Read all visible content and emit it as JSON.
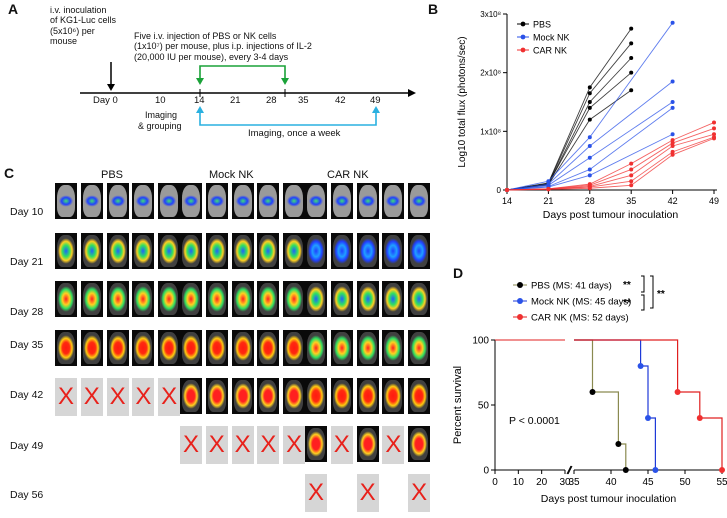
{
  "panels": {
    "a": "A",
    "b": "B",
    "c": "C",
    "d": "D"
  },
  "timeline": {
    "inoculation_text": [
      "i.v. inoculation",
      "of KG1-Luc cells",
      "(5x10⁶) per",
      "mouse"
    ],
    "injection_text": [
      "Five i.v. injection of PBS or NK cells",
      "(1x10⁷) per mouse, plus i.p. injections of IL-2",
      "(20,000 IU per mouse), every 3-4 days"
    ],
    "ticks": [
      "Day 0",
      "10",
      "14",
      "21",
      "28",
      "35",
      "42",
      "49"
    ],
    "imaging_grouping": [
      "Imaging",
      "& grouping"
    ],
    "imaging_weekly": "Imaging, once a week",
    "colors": {
      "green": "#1aa238",
      "cyan": "#2ab0e0"
    }
  },
  "imaging": {
    "groups": [
      "PBS",
      "Mock NK",
      "CAR NK"
    ],
    "days": [
      "Day 10",
      "Day 21",
      "Day 28",
      "Day 35",
      "Day 42",
      "Day 49",
      "Day 56"
    ],
    "dead_mark": "X"
  },
  "chart_data": [
    {
      "type": "line",
      "panel": "B",
      "title": "",
      "xlabel": "Days post tumour inoculation",
      "ylabel": "Log10 total flux (photons/sec)",
      "x_ticks": [
        "14",
        "21",
        "28",
        "35",
        "42",
        "49"
      ],
      "y_ticks": [
        "0",
        "1x10⁸",
        "2x10⁸",
        "3x10⁸"
      ],
      "ylim": [
        0,
        300000000
      ],
      "legend": [
        "PBS",
        "Mock NK",
        "CAR NK"
      ],
      "legend_placement": "top-left",
      "series": [
        {
          "name": "PBS",
          "color": "#000000",
          "x": [
            14,
            21,
            28,
            35
          ],
          "lines": [
            [
              0,
              12000000,
              175000000,
              275000000
            ],
            [
              0,
              11000000,
              165000000,
              250000000
            ],
            [
              0,
              10000000,
              150000000,
              225000000
            ],
            [
              0,
              10000000,
              140000000,
              200000000
            ],
            [
              0,
              9000000,
              120000000,
              170000000
            ]
          ]
        },
        {
          "name": "Mock NK",
          "color": "#2a52e8",
          "x": [
            14,
            21,
            28,
            42
          ],
          "lines": [
            [
              0,
              15000000,
              90000000,
              285000000
            ],
            [
              0,
              10000000,
              75000000,
              185000000
            ],
            [
              0,
              8000000,
              55000000,
              150000000
            ],
            [
              0,
              6000000,
              35000000,
              140000000
            ],
            [
              0,
              5000000,
              25000000,
              95000000
            ]
          ]
        },
        {
          "name": "CAR NK",
          "color": "#f03030",
          "x": [
            14,
            21,
            28,
            35,
            42,
            49
          ],
          "lines": [
            [
              0,
              2000000,
              10000000,
              45000000,
              85000000,
              115000000
            ],
            [
              0,
              2000000,
              8000000,
              35000000,
              80000000,
              105000000
            ],
            [
              0,
              1500000,
              6000000,
              25000000,
              75000000,
              95000000
            ],
            [
              0,
              1500000,
              5000000,
              15000000,
              65000000,
              90000000
            ],
            [
              0,
              1000000,
              3000000,
              8000000,
              60000000,
              88000000
            ]
          ]
        }
      ]
    },
    {
      "type": "line",
      "panel": "D",
      "subtype": "kaplan-meier",
      "xlabel": "Days post tumour inoculation",
      "ylabel": "Percent survival",
      "x_ticks": [
        "0",
        "10",
        "20",
        "30",
        "35",
        "40",
        "45",
        "50",
        "55"
      ],
      "y_ticks": [
        "0",
        "50",
        "100"
      ],
      "xlim": [
        0,
        55
      ],
      "ylim": [
        0,
        100
      ],
      "annotation": "P < 0.0001",
      "significance": [
        "**",
        "**",
        "**"
      ],
      "legend": [
        "PBS (MS: 41 days)",
        "Mock NK (MS: 45 days)",
        "CAR NK (MS: 52 days)"
      ],
      "series": [
        {
          "name": "PBS",
          "line_color": "#8a8a50",
          "marker_color": "#000000",
          "steps": [
            [
              0,
              100
            ],
            [
              37.5,
              60
            ],
            [
              41,
              20
            ],
            [
              42,
              0
            ]
          ]
        },
        {
          "name": "Mock NK",
          "line_color": "#1e3ad8",
          "marker_color": "#2a52e8",
          "steps": [
            [
              0,
              100
            ],
            [
              44,
              80
            ],
            [
              45,
              40
            ],
            [
              46,
              0
            ]
          ]
        },
        {
          "name": "CAR NK",
          "line_color": "#e02020",
          "marker_color": "#f03030",
          "steps": [
            [
              0,
              100
            ],
            [
              49,
              60
            ],
            [
              52,
              40
            ],
            [
              55,
              0
            ]
          ]
        }
      ]
    }
  ]
}
